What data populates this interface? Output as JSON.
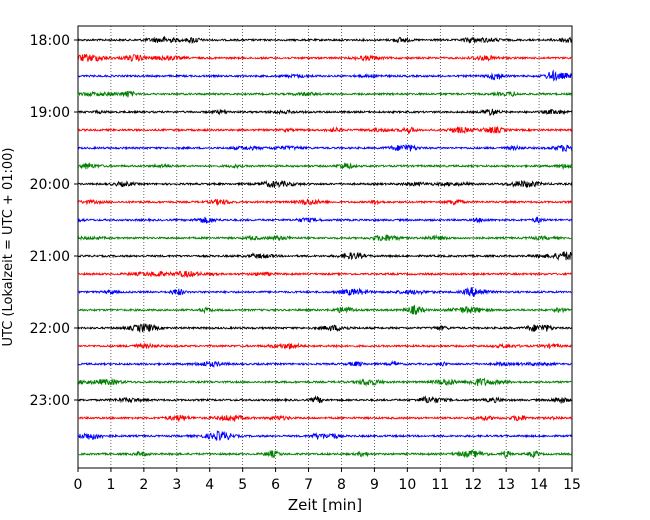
{
  "chart_data": {
    "type": "line",
    "title": "",
    "xlabel": "Zeit  [min]",
    "ylabel": "UTC (Lokalzeit = UTC + 01:00)",
    "xlim": [
      0,
      15
    ],
    "x_ticks": [
      0,
      1,
      2,
      3,
      4,
      5,
      6,
      7,
      8,
      9,
      10,
      11,
      12,
      13,
      14,
      15
    ],
    "y_tick_labels": [
      "18:00",
      "19:00",
      "20:00",
      "21:00",
      "22:00",
      "23:00"
    ],
    "trace_start_times": [
      "18:00",
      "18:15",
      "18:30",
      "18:45",
      "19:00",
      "19:15",
      "19:30",
      "19:45",
      "20:00",
      "20:15",
      "20:30",
      "20:45",
      "21:00",
      "21:15",
      "21:30",
      "21:45",
      "22:00",
      "22:15",
      "22:30",
      "22:45",
      "23:00",
      "23:15",
      "23:30",
      "23:45"
    ],
    "trace_duration_min": 15,
    "trace_colors": [
      "#000000",
      "#ff0000",
      "#0000ff",
      "#008000"
    ],
    "grid": {
      "x": true,
      "style": "dotted"
    },
    "legend": "none"
  }
}
